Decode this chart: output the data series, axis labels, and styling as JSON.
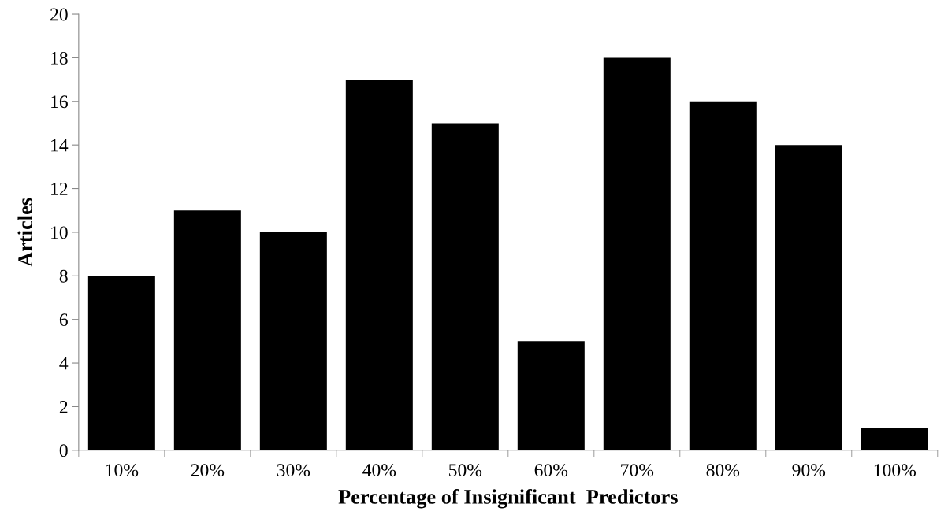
{
  "chart_data": {
    "type": "bar",
    "xlabel": "Percentage of Insignificant  Predictors",
    "ylabel": "Articles",
    "categories": [
      "10%",
      "20%",
      "30%",
      "40%",
      "50%",
      "60%",
      "70%",
      "80%",
      "90%",
      "100%"
    ],
    "values": [
      8,
      11,
      10,
      17,
      15,
      5,
      18,
      16,
      14,
      1
    ],
    "color": "#000000",
    "ylim": [
      0,
      20
    ],
    "yticks": [
      0,
      2,
      4,
      6,
      8,
      10,
      12,
      14,
      16,
      18,
      20
    ],
    "grid": false,
    "legend": false
  }
}
